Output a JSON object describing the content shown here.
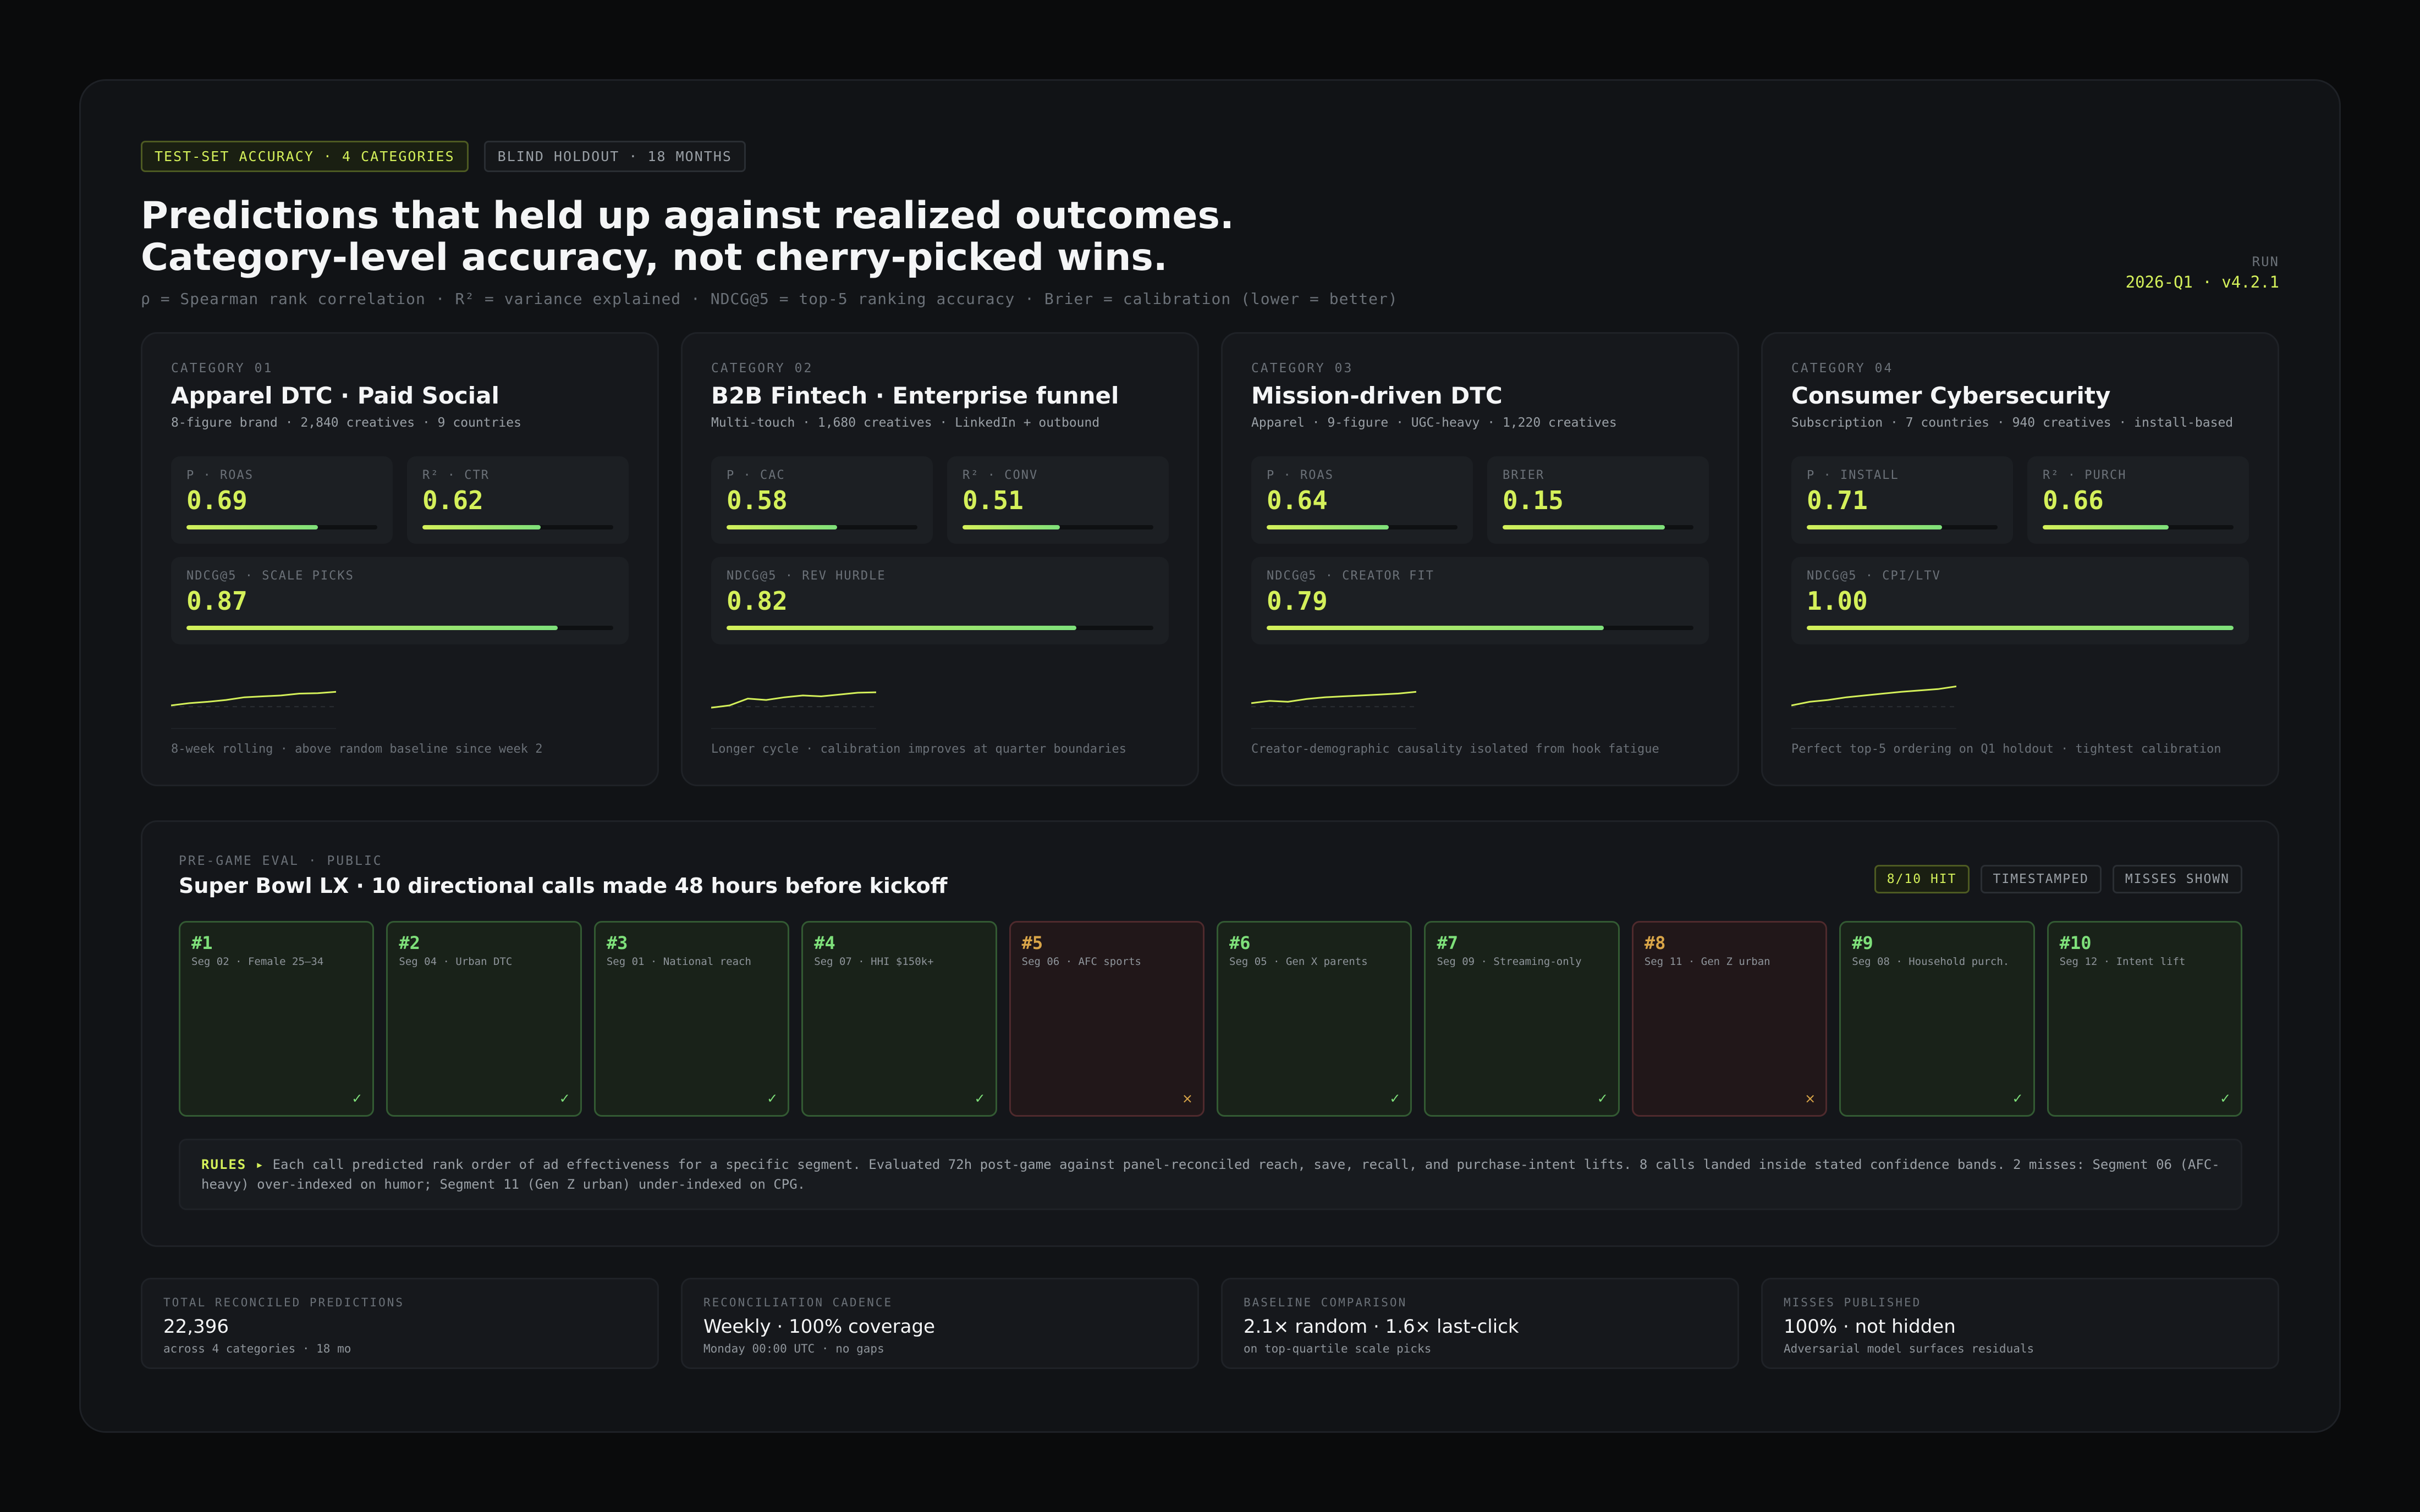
{
  "header": {
    "pill_accuracy": "TEST-SET ACCURACY · 4 CATEGORIES",
    "pill_holdout": "BLIND HOLDOUT · 18 MONTHS",
    "title_line1": "Predictions that held up against realized outcomes.",
    "title_line2": "Category-level accuracy, not cherry-picked wins.",
    "legend": "ρ = Spearman rank correlation  ·  R² = variance explained  ·  NDCG@5 = top-5 ranking accuracy  ·  Brier = calibration (lower = better)",
    "run_label": "RUN",
    "run_value": "2026-Q1 · v4.2.1"
  },
  "colors": {
    "accent": "#d4f05a",
    "hit": "#7ee07a",
    "miss": "#d9a548"
  },
  "categories": [
    {
      "eyebrow": "CATEGORY 01",
      "title": "Apparel DTC · Paid Social",
      "sub": "8-figure brand · 2,840 creatives · 9 countries",
      "m1_label": "Ρ · ROAS",
      "m1_value": "0.69",
      "m1_fill": 0.69,
      "m2_label": "R² · CTR",
      "m2_value": "0.62",
      "m2_fill": 0.62,
      "m3_label": "NDCG@5 · SCALE PICKS",
      "m3_value": "0.87",
      "m3_fill": 0.87,
      "spark": [
        0.2,
        0.25,
        0.28,
        0.32,
        0.38,
        0.4,
        0.42,
        0.46,
        0.47,
        0.5
      ],
      "foot": "8-week rolling · above random baseline since week 2"
    },
    {
      "eyebrow": "CATEGORY 02",
      "title": "B2B Fintech · Enterprise funnel",
      "sub": "Multi-touch · 1,680 creatives · LinkedIn + outbound",
      "m1_label": "Ρ · CAC",
      "m1_value": "0.58",
      "m1_fill": 0.58,
      "m2_label": "R² · CONV",
      "m2_value": "0.51",
      "m2_fill": 0.51,
      "m3_label": "NDCG@5 · REV HURDLE",
      "m3_value": "0.82",
      "m3_fill": 0.82,
      "spark": [
        0.15,
        0.2,
        0.35,
        0.32,
        0.38,
        0.42,
        0.4,
        0.44,
        0.48,
        0.49
      ],
      "foot": "Longer cycle · calibration improves at quarter boundaries"
    },
    {
      "eyebrow": "CATEGORY 03",
      "title": "Mission-driven DTC",
      "sub": "Apparel · 9-figure · UGC-heavy · 1,220 creatives",
      "m1_label": "Ρ · ROAS",
      "m1_value": "0.64",
      "m1_fill": 0.64,
      "m2_label": "BRIER",
      "m2_value": "0.15",
      "m2_fill": 0.85,
      "m3_label": "NDCG@5 · CREATOR FIT",
      "m3_value": "0.79",
      "m3_fill": 0.79,
      "spark": [
        0.25,
        0.3,
        0.28,
        0.34,
        0.38,
        0.4,
        0.42,
        0.44,
        0.46,
        0.5
      ],
      "foot": "Creator-demographic causality isolated from hook fatigue"
    },
    {
      "eyebrow": "CATEGORY 04",
      "title": "Consumer Cybersecurity",
      "sub": "Subscription · 7 countries · 940 creatives · install-based",
      "m1_label": "Ρ · INSTALL",
      "m1_value": "0.71",
      "m1_fill": 0.71,
      "m2_label": "R² · PURCH",
      "m2_value": "0.66",
      "m2_fill": 0.66,
      "m3_label": "NDCG@5 · CPI/LTV",
      "m3_value": "1.00",
      "m3_fill": 1.0,
      "spark": [
        0.2,
        0.28,
        0.32,
        0.38,
        0.42,
        0.46,
        0.5,
        0.53,
        0.56,
        0.62
      ],
      "foot": "Perfect top-5 ordering on Q1 holdout · tightest calibration"
    }
  ],
  "superbowl": {
    "eyebrow": "PRE-GAME EVAL · PUBLIC",
    "title": "Super Bowl LX · 10 directional calls made 48 hours before kickoff",
    "pill_hit": "8/10 HIT",
    "pill_timestamped": "TIMESTAMPED",
    "pill_misses": "MISSES SHOWN",
    "calls": [
      {
        "num": "#1",
        "seg": "Seg 02 · Female 25–34",
        "hit": true,
        "mark": "✓"
      },
      {
        "num": "#2",
        "seg": "Seg 04 · Urban DTC",
        "hit": true,
        "mark": "✓"
      },
      {
        "num": "#3",
        "seg": "Seg 01 · National reach",
        "hit": true,
        "mark": "✓"
      },
      {
        "num": "#4",
        "seg": "Seg 07 · HHI $150k+",
        "hit": true,
        "mark": "✓"
      },
      {
        "num": "#5",
        "seg": "Seg 06 · AFC sports",
        "hit": false,
        "mark": "×"
      },
      {
        "num": "#6",
        "seg": "Seg 05 · Gen X parents",
        "hit": true,
        "mark": "✓"
      },
      {
        "num": "#7",
        "seg": "Seg 09 · Streaming-only",
        "hit": true,
        "mark": "✓"
      },
      {
        "num": "#8",
        "seg": "Seg 11 · Gen Z urban",
        "hit": false,
        "mark": "×"
      },
      {
        "num": "#9",
        "seg": "Seg 08 · Household purch.",
        "hit": true,
        "mark": "✓"
      },
      {
        "num": "#10",
        "seg": "Seg 12 · Intent lift",
        "hit": true,
        "mark": "✓"
      }
    ],
    "rules_label": "RULES ▸",
    "rules_text": "Each call predicted rank order of ad effectiveness for a specific segment. Evaluated 72h post-game against panel-reconciled reach, save, recall, and purchase-intent lifts. 8 calls landed inside stated confidence bands. 2 misses: Segment 06 (AFC-heavy) over-indexed on humor; Segment 11 (Gen Z urban) under-indexed on CPG."
  },
  "stats": [
    {
      "label": "TOTAL RECONCILED PREDICTIONS",
      "value": "22,396",
      "sub": "across 4 categories · 18 mo"
    },
    {
      "label": "RECONCILIATION CADENCE",
      "value": "Weekly · 100% coverage",
      "sub": "Monday 00:00 UTC · no gaps"
    },
    {
      "label": "BASELINE COMPARISON",
      "value": "2.1× random · 1.6× last-click",
      "sub": "on top-quartile scale picks"
    },
    {
      "label": "MISSES PUBLISHED",
      "value": "100% · not hidden",
      "sub": "Adversarial model surfaces residuals"
    }
  ]
}
